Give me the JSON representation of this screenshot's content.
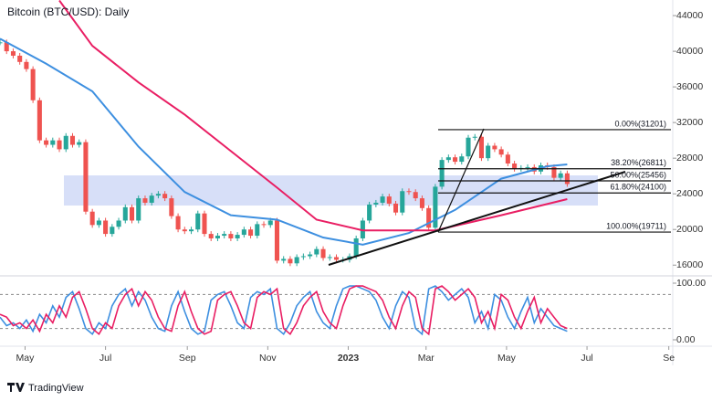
{
  "chart_data": {
    "type": "candlestick",
    "title": "Bitcoin (BTC/USD): Daily",
    "xlim": [
      0,
      102
    ],
    "xticks": [
      {
        "value": 3.8,
        "label": "May"
      },
      {
        "value": 16,
        "label": "Jul"
      },
      {
        "value": 28.4,
        "label": "Sep"
      },
      {
        "value": 40.6,
        "label": "Nov"
      },
      {
        "value": 52.8,
        "label": "2023"
      },
      {
        "value": 64.6,
        "label": "Mar"
      },
      {
        "value": 76.8,
        "label": "May"
      },
      {
        "value": 89,
        "label": "Jul"
      },
      {
        "value": 101.4,
        "label": "Se"
      }
    ],
    "ylim": [
      15000,
      45750
    ],
    "yticks": [
      16000,
      20000,
      24000,
      28000,
      32000,
      36000,
      40000,
      44000
    ],
    "up_color": "#26a69a",
    "down_color": "#ef5350",
    "closes": [
      41000,
      40000,
      39500,
      38800,
      38000,
      34500,
      30000,
      29500,
      30000,
      29000,
      30500,
      29500,
      29800,
      22000,
      20500,
      21000,
      19500,
      20300,
      21000,
      22500,
      21000,
      23500,
      23000,
      23800,
      24000,
      23500,
      21500,
      20000,
      19800,
      20000,
      21800,
      19500,
      19000,
      19300,
      19500,
      19000,
      19400,
      20000,
      19300,
      20600,
      20500,
      21000,
      16500,
      16700,
      16200,
      16900,
      17000,
      17200,
      17800,
      16800,
      16900,
      16600,
      16600,
      17000,
      19000,
      21000,
      22800,
      23000,
      23700,
      22900,
      21900,
      24300,
      24200,
      23500,
      22400,
      20200,
      24800,
      27800,
      28100,
      27600,
      28200,
      30300,
      30400,
      28000,
      29400,
      29000,
      28400,
      27400,
      26800,
      26900,
      27000,
      26500,
      27200,
      27000,
      25800,
      26300,
      25100
    ],
    "series": [
      {
        "color": "#3d8fe0",
        "x": [
          0,
          7,
          14,
          21,
          28,
          35,
          42,
          49,
          55,
          62,
          69,
          76,
          83,
          86
        ],
        "values": [
          41400,
          38600,
          35500,
          29300,
          24200,
          21600,
          21100,
          19100,
          18300,
          19600,
          22200,
          25700,
          27100,
          27300
        ]
      },
      {
        "color": "#e91e63",
        "x": [
          9,
          14,
          21,
          28,
          35,
          42,
          48,
          55,
          62,
          66,
          76,
          86
        ],
        "values": [
          45700,
          40600,
          36500,
          32900,
          28800,
          24700,
          21100,
          19900,
          19900,
          19900,
          21600,
          23400
        ]
      }
    ],
    "fib_levels": [
      {
        "label": "0.00%(31201)",
        "value": 31201
      },
      {
        "label": "38.20%(26811)",
        "value": 26811
      },
      {
        "label": "50.00%(25456)",
        "value": 25456
      },
      {
        "label": "61.80%(24100)",
        "value": 24100
      },
      {
        "label": "100.00%(19711)",
        "value": 19711
      }
    ],
    "oscillator": {
      "ylim": [
        -9.7,
        111.3
      ],
      "yticks": [
        {
          "value": 100,
          "label": "100.00"
        },
        {
          "value": 0,
          "label": "0.00"
        }
      ],
      "levels": [
        80,
        20
      ],
      "series": [
        {
          "color": "#3d8fe0",
          "values": [
            40,
            25,
            30,
            20,
            35,
            15,
            45,
            30,
            60,
            40,
            75,
            85,
            55,
            20,
            10,
            30,
            20,
            60,
            80,
            90,
            60,
            85,
            70,
            40,
            20,
            15,
            60,
            85,
            50,
            20,
            10,
            15,
            70,
            80,
            85,
            60,
            30,
            20,
            75,
            85,
            80,
            90,
            20,
            10,
            30,
            60,
            75,
            85,
            50,
            30,
            20,
            60,
            90,
            95,
            95,
            90,
            85,
            70,
            40,
            20,
            60,
            85,
            75,
            20,
            10,
            90,
            95,
            85,
            70,
            80,
            90,
            75,
            30,
            50,
            20,
            80,
            70,
            40,
            20,
            50,
            75,
            30,
            55,
            40,
            25,
            20,
            15
          ]
        },
        {
          "color": "#e91e63",
          "values": [
            45,
            40,
            25,
            30,
            20,
            35,
            15,
            45,
            30,
            60,
            40,
            75,
            85,
            55,
            20,
            10,
            30,
            20,
            60,
            80,
            90,
            60,
            85,
            70,
            40,
            20,
            15,
            60,
            85,
            50,
            20,
            10,
            15,
            70,
            80,
            85,
            60,
            30,
            20,
            75,
            85,
            80,
            90,
            20,
            10,
            30,
            60,
            75,
            85,
            50,
            30,
            20,
            60,
            90,
            95,
            95,
            90,
            85,
            70,
            40,
            20,
            60,
            85,
            75,
            20,
            10,
            90,
            95,
            85,
            70,
            80,
            90,
            75,
            30,
            50,
            20,
            80,
            70,
            40,
            20,
            50,
            75,
            30,
            55,
            40,
            25,
            20
          ]
        }
      ]
    },
    "brand": "TradingView"
  }
}
